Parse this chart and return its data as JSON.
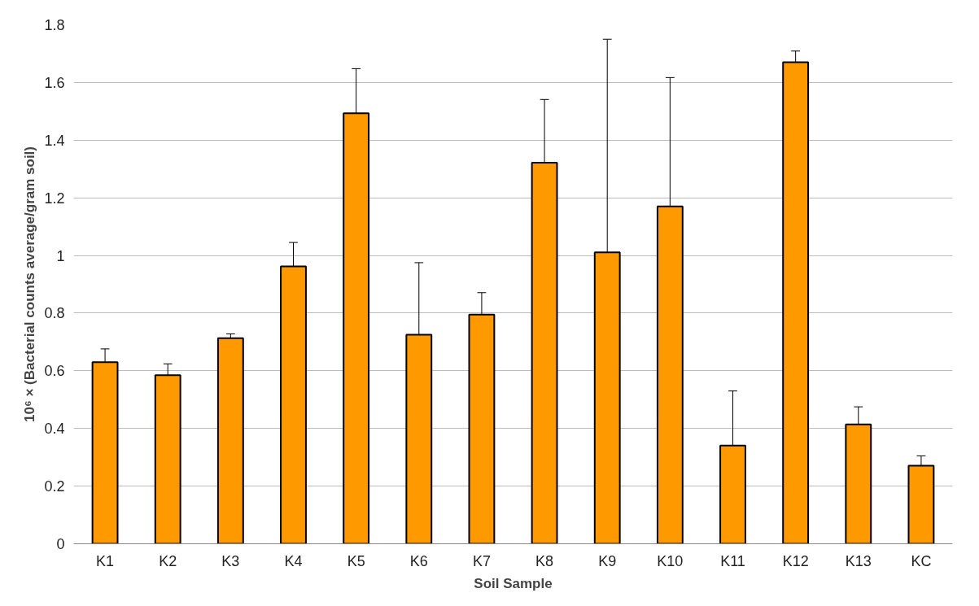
{
  "chart_data": {
    "type": "bar",
    "xlabel": "Soil Sample",
    "ylabel": "10⁶ × (Bacterial counts average/gram soil)",
    "categories": [
      "K1",
      "K2",
      "K3",
      "K4",
      "K5",
      "K6",
      "K7",
      "K8",
      "K9",
      "K10",
      "K11",
      "K12",
      "K13",
      "KC"
    ],
    "values": [
      0.63,
      0.585,
      0.713,
      0.962,
      1.493,
      0.725,
      0.795,
      1.322,
      1.011,
      1.17,
      0.341,
      1.67,
      0.414,
      0.271
    ],
    "errors": [
      [
        0.63,
        0.676
      ],
      [
        0.585,
        0.624
      ],
      [
        0.713,
        0.728
      ],
      [
        0.962,
        1.045
      ],
      [
        1.493,
        1.648
      ],
      [
        0.725,
        0.975
      ],
      [
        0.795,
        0.871
      ],
      [
        1.322,
        1.541
      ],
      [
        1.011,
        1.75
      ],
      [
        1.17,
        1.617
      ],
      [
        0.341,
        0.53
      ],
      [
        1.67,
        1.709
      ],
      [
        0.414,
        0.475
      ],
      [
        0.271,
        0.305
      ]
    ],
    "color": "#ff9900",
    "ylim": [
      0,
      1.8
    ],
    "yticks": [
      0,
      0.2,
      0.4,
      0.6,
      0.8,
      1,
      1.2,
      1.4,
      1.6,
      1.8
    ],
    "grid": "y"
  }
}
